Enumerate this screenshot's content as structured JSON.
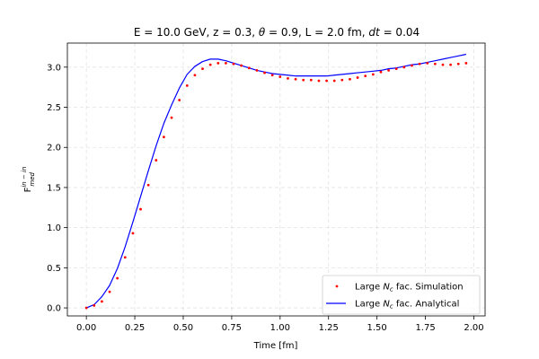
{
  "chart_data": {
    "type": "line",
    "title": "E = 10.0 GeV, z = 0.3, θ = 0.9, L = 2.0 fm, dt = 0.04",
    "title_parts": [
      "E = 10.0 GeV, z = 0.3, ",
      "θ",
      " = 0.9, L = 2.0 fm, ",
      "dt",
      " = 0.04"
    ],
    "xlabel": "Time [fm]",
    "ylabel": "F",
    "ylabel_sup": "in − in",
    "ylabel_sub": "med",
    "xlim": [
      -0.098,
      2.058
    ],
    "ylim": [
      -0.1,
      3.3
    ],
    "x_ticks": [
      0.0,
      0.25,
      0.5,
      0.75,
      1.0,
      1.25,
      1.5,
      1.75,
      2.0
    ],
    "x_tick_labels": [
      "0.00",
      "0.25",
      "0.50",
      "0.75",
      "1.00",
      "1.25",
      "1.50",
      "1.75",
      "2.00"
    ],
    "y_ticks": [
      0.0,
      0.5,
      1.0,
      1.5,
      2.0,
      2.5,
      3.0
    ],
    "y_tick_labels": [
      "0.0",
      "0.5",
      "1.0",
      "1.5",
      "2.0",
      "2.5",
      "3.0"
    ],
    "grid": true,
    "legend_position": "bottom-right",
    "series": [
      {
        "name": "Large Nc fac. Simulation",
        "legend_parts": [
          "Large ",
          "N",
          "c",
          " fac. Simulation"
        ],
        "kind": "scatter",
        "color": "#ff0000",
        "x": [
          0.0,
          0.04,
          0.08,
          0.12,
          0.16,
          0.2,
          0.24,
          0.28,
          0.32,
          0.36,
          0.4,
          0.44,
          0.48,
          0.52,
          0.56,
          0.6,
          0.64,
          0.68,
          0.72,
          0.76,
          0.8,
          0.84,
          0.88,
          0.92,
          0.96,
          1.0,
          1.04,
          1.08,
          1.12,
          1.16,
          1.2,
          1.24,
          1.28,
          1.32,
          1.36,
          1.4,
          1.44,
          1.48,
          1.52,
          1.56,
          1.6,
          1.64,
          1.68,
          1.72,
          1.76,
          1.8,
          1.84,
          1.88,
          1.92,
          1.96
        ],
        "y": [
          0.0,
          0.03,
          0.08,
          0.2,
          0.37,
          0.63,
          0.93,
          1.23,
          1.53,
          1.84,
          2.13,
          2.37,
          2.59,
          2.77,
          2.9,
          2.98,
          3.03,
          3.05,
          3.05,
          3.04,
          3.02,
          2.99,
          2.96,
          2.93,
          2.9,
          2.88,
          2.86,
          2.85,
          2.84,
          2.84,
          2.83,
          2.83,
          2.83,
          2.84,
          2.85,
          2.87,
          2.89,
          2.91,
          2.94,
          2.96,
          2.98,
          3.0,
          3.02,
          3.04,
          3.05,
          3.04,
          3.03,
          3.03,
          3.04,
          3.05
        ]
      },
      {
        "name": "Large Nc fac. Analytical",
        "legend_parts": [
          "Large ",
          "N",
          "c",
          " fac. Analytical"
        ],
        "kind": "line",
        "color": "#0000ff",
        "x": [
          0.0,
          0.04,
          0.08,
          0.12,
          0.16,
          0.2,
          0.24,
          0.28,
          0.32,
          0.36,
          0.4,
          0.44,
          0.48,
          0.52,
          0.56,
          0.6,
          0.64,
          0.68,
          0.72,
          0.76,
          0.8,
          0.84,
          0.88,
          0.92,
          0.96,
          1.0,
          1.04,
          1.08,
          1.12,
          1.16,
          1.2,
          1.24,
          1.28,
          1.32,
          1.36,
          1.4,
          1.44,
          1.48,
          1.52,
          1.56,
          1.6,
          1.64,
          1.68,
          1.72,
          1.76,
          1.8,
          1.84,
          1.88,
          1.92,
          1.96
        ],
        "y": [
          0.0,
          0.04,
          0.14,
          0.28,
          0.49,
          0.76,
          1.07,
          1.39,
          1.71,
          2.02,
          2.3,
          2.53,
          2.74,
          2.91,
          3.01,
          3.07,
          3.1,
          3.1,
          3.08,
          3.05,
          3.02,
          2.99,
          2.96,
          2.94,
          2.92,
          2.91,
          2.9,
          2.89,
          2.89,
          2.89,
          2.89,
          2.89,
          2.9,
          2.91,
          2.92,
          2.93,
          2.94,
          2.95,
          2.96,
          2.98,
          2.99,
          3.01,
          3.03,
          3.04,
          3.06,
          3.08,
          3.1,
          3.12,
          3.14,
          3.16
        ]
      }
    ]
  }
}
